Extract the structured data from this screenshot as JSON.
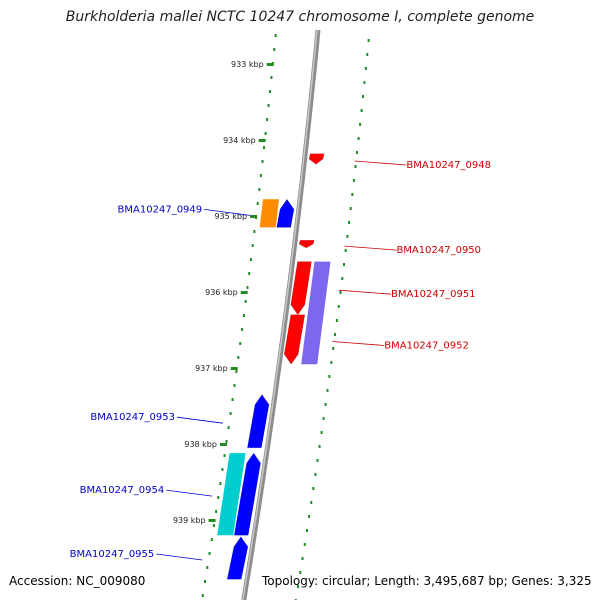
{
  "title": "Burkholderia mallei NCTC 10247 chromosome I, complete genome",
  "footer": {
    "accession": "Accession: NC_009080",
    "topology": "Topology: circular; Length: 3,495,687 bp; Genes: 3,325"
  },
  "ticks": [
    {
      "label": "933 kbp",
      "kbp": 933
    },
    {
      "label": "934 kbp",
      "kbp": 934
    },
    {
      "label": "935 kbp",
      "kbp": 935
    },
    {
      "label": "936 kbp",
      "kbp": 936
    },
    {
      "label": "937 kbp",
      "kbp": 937
    },
    {
      "label": "938 kbp",
      "kbp": 938
    },
    {
      "label": "939 kbp",
      "kbp": 939
    }
  ],
  "genes": [
    {
      "label": "BMA10247_0948",
      "strand": "forward",
      "color": "#ff0000",
      "start_kbp": 934.18,
      "end_kbp": 934.32,
      "labelColor": "#cc0000"
    },
    {
      "label": "BMA10247_0949",
      "strand": "reverse",
      "color": "#0000ff",
      "start_kbp": 934.78,
      "end_kbp": 935.15,
      "labelColor": "#0000cc"
    },
    {
      "label": "BMA10247_0950",
      "strand": "forward",
      "color": "#ff0000",
      "start_kbp": 935.32,
      "end_kbp": 935.42,
      "labelColor": "#cc0000"
    },
    {
      "label": "BMA10247_0951",
      "strand": "forward",
      "color": "#ff0000",
      "start_kbp": 935.6,
      "end_kbp": 936.3,
      "labelColor": "#cc0000"
    },
    {
      "label": "BMA10247_0952",
      "strand": "forward",
      "color": "#ff0000",
      "start_kbp": 936.3,
      "end_kbp": 936.95,
      "labelColor": "#cc0000"
    },
    {
      "label": "BMA10247_0953",
      "strand": "reverse",
      "color": "#0000ff",
      "start_kbp": 937.35,
      "end_kbp": 938.05,
      "labelColor": "#0000cc"
    },
    {
      "label": "BMA10247_0954",
      "strand": "reverse",
      "color": "#0000ff",
      "start_kbp": 938.12,
      "end_kbp": 939.2,
      "labelColor": "#0000cc"
    },
    {
      "label": "BMA10247_0955",
      "strand": "reverse",
      "color": "#0000ff",
      "start_kbp": 939.22,
      "end_kbp": 939.78,
      "labelColor": "#0000cc"
    }
  ],
  "features": [
    {
      "strand": "reverse",
      "color": "#ff8c00",
      "start_kbp": 934.78,
      "end_kbp": 935.15
    },
    {
      "strand": "forward",
      "color": "#7b68ee",
      "start_kbp": 935.6,
      "end_kbp": 936.95
    },
    {
      "strand": "reverse",
      "color": "#00cdcd",
      "start_kbp": 938.12,
      "end_kbp": 939.2
    }
  ],
  "colors": {
    "backbone": "#8c8c8c",
    "gc_dots": "#228b22"
  }
}
